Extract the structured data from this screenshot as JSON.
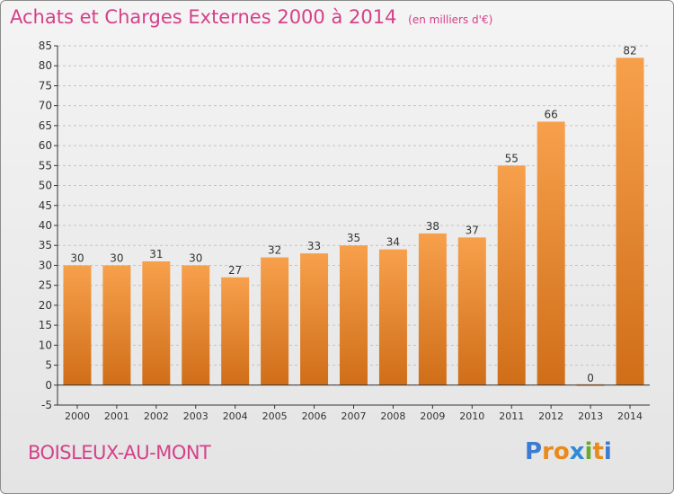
{
  "header": {
    "title": "Achats et Charges Externes 2000 à 2014",
    "subtitle": "(en milliers d'€)"
  },
  "footer": {
    "city": "BOISLEUX-AU-MONT",
    "logo_text": "Proxiti",
    "logo_letter_colors": [
      "#3b7bd1",
      "#e98a1a",
      "#e98a1a",
      "#2f8bd8",
      "#6aa92b",
      "#e98a1a",
      "#3b7bd1"
    ]
  },
  "colors": {
    "title": "#d4418a",
    "bar_light": "#f7a04c",
    "bar_dark": "#d06e18",
    "grid": "#c4c4c4",
    "axis": "#333333"
  },
  "chart_data": {
    "type": "bar",
    "title": "Achats et Charges Externes 2000 à 2014",
    "subtitle": "(en milliers d'€)",
    "categories": [
      "2000",
      "2001",
      "2002",
      "2003",
      "2004",
      "2005",
      "2006",
      "2007",
      "2008",
      "2009",
      "2010",
      "2011",
      "2012",
      "2013",
      "2014"
    ],
    "values": [
      30,
      30,
      31,
      30,
      27,
      32,
      33,
      35,
      34,
      38,
      37,
      55,
      66,
      0,
      82
    ],
    "ylim": [
      -5,
      85
    ],
    "yticks": [
      -5,
      0,
      5,
      10,
      15,
      20,
      25,
      30,
      35,
      40,
      45,
      50,
      55,
      60,
      65,
      70,
      75,
      80,
      85
    ],
    "grid": true,
    "data_labels": true
  }
}
